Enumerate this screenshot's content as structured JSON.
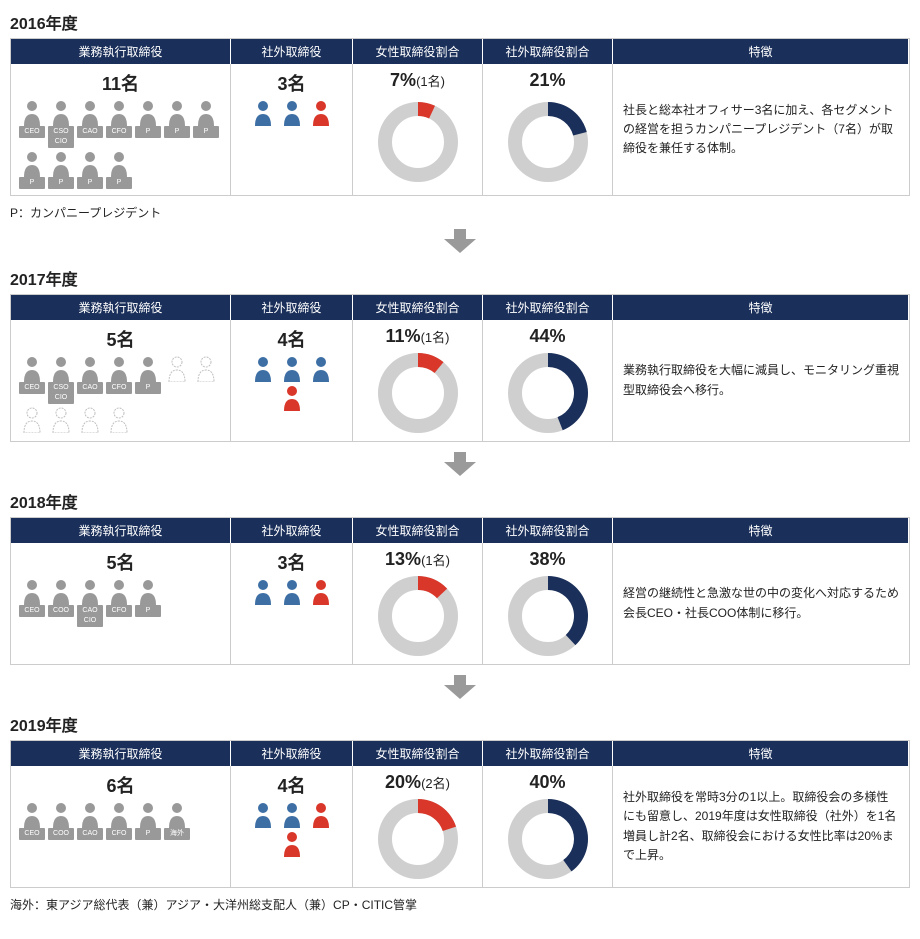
{
  "colors": {
    "header_bg": "#1a2f5a",
    "navy": "#1a2f5a",
    "red": "#d9372a",
    "blue": "#3d6fa5",
    "grey": "#999999",
    "lightgrey": "#cfcfcf",
    "donut_bg": "#cfcfcf",
    "outline": "#bfbfbf",
    "arrow": "#9a9a9a"
  },
  "headers": {
    "exec": "業務執行取締役",
    "outside": "社外取締役",
    "female": "女性取締役割合",
    "outside_ratio": "社外取締役割合",
    "feature": "特徴"
  },
  "footnotes": {
    "p": "P：カンパニープレジデント",
    "kaigai": "海外：東アジア総代表（兼）アジア・大洋州総支配人（兼）CP・CITIC管掌"
  },
  "years": [
    {
      "year": "2016年度",
      "exec_count": "11名",
      "exec_people": [
        {
          "label": "CEO",
          "color": "grey"
        },
        {
          "label": "CSO CIO",
          "color": "grey"
        },
        {
          "label": "CAO",
          "color": "grey"
        },
        {
          "label": "CFO",
          "color": "grey"
        },
        {
          "label": "P",
          "color": "grey"
        },
        {
          "label": "P",
          "color": "grey"
        },
        {
          "label": "P",
          "color": "grey"
        },
        {
          "label": "P",
          "color": "grey"
        },
        {
          "label": "P",
          "color": "grey"
        },
        {
          "label": "P",
          "color": "grey"
        },
        {
          "label": "P",
          "color": "grey"
        }
      ],
      "outside_count": "3名",
      "outside_people": [
        {
          "color": "blue"
        },
        {
          "color": "blue"
        },
        {
          "color": "red"
        }
      ],
      "female_pct_label": "7%(1名)",
      "female_pct": 7,
      "outside_pct_label": "21%",
      "outside_pct": 21,
      "feature": "社長と総本社オフィサー3名に加え、各セグメントの経営を担うカンパニープレジデント（7名）が取締役を兼任する体制。",
      "footnote_after": "p"
    },
    {
      "year": "2017年度",
      "exec_count": "5名",
      "exec_people": [
        {
          "label": "CEO",
          "color": "grey"
        },
        {
          "label": "CSO CIO",
          "color": "grey"
        },
        {
          "label": "CAO",
          "color": "grey"
        },
        {
          "label": "CFO",
          "color": "grey"
        },
        {
          "label": "P",
          "color": "grey"
        },
        {
          "label": "",
          "color": "outline"
        },
        {
          "label": "",
          "color": "outline"
        },
        {
          "label": "",
          "color": "outline"
        },
        {
          "label": "",
          "color": "outline"
        },
        {
          "label": "",
          "color": "outline"
        },
        {
          "label": "",
          "color": "outline"
        }
      ],
      "outside_count": "4名",
      "outside_people": [
        {
          "color": "blue"
        },
        {
          "color": "blue"
        },
        {
          "color": "blue"
        },
        {
          "color": "red"
        }
      ],
      "female_pct_label": "11%(1名)",
      "female_pct": 11,
      "outside_pct_label": "44%",
      "outside_pct": 44,
      "feature": "業務執行取締役を大幅に減員し、モニタリング重視型取締役会へ移行。"
    },
    {
      "year": "2018年度",
      "exec_count": "5名",
      "exec_people": [
        {
          "label": "CEO",
          "color": "grey"
        },
        {
          "label": "COO",
          "color": "grey"
        },
        {
          "label": "CAO CIO",
          "color": "grey"
        },
        {
          "label": "CFO",
          "color": "grey"
        },
        {
          "label": "P",
          "color": "grey"
        }
      ],
      "outside_count": "3名",
      "outside_people": [
        {
          "color": "blue"
        },
        {
          "color": "blue"
        },
        {
          "color": "red"
        }
      ],
      "female_pct_label": "13%(1名)",
      "female_pct": 13,
      "outside_pct_label": "38%",
      "outside_pct": 38,
      "feature": "経営の継続性と急激な世の中の変化へ対応するため会長CEO・社長COO体制に移行。"
    },
    {
      "year": "2019年度",
      "exec_count": "6名",
      "exec_people": [
        {
          "label": "CEO",
          "color": "grey"
        },
        {
          "label": "COO",
          "color": "grey"
        },
        {
          "label": "CAO",
          "color": "grey"
        },
        {
          "label": "CFO",
          "color": "grey"
        },
        {
          "label": "P",
          "color": "grey"
        },
        {
          "label": "海外",
          "color": "grey"
        }
      ],
      "outside_count": "4名",
      "outside_people": [
        {
          "color": "blue"
        },
        {
          "color": "blue"
        },
        {
          "color": "red"
        },
        {
          "color": "red"
        }
      ],
      "female_pct_label": "20%(2名)",
      "female_pct": 20,
      "outside_pct_label": "40%",
      "outside_pct": 40,
      "feature": "社外取締役を常時3分の1以上。取締役会の多様性にも留意し、2019年度は女性取締役（社外）を1名増員し計2名、取締役会における女性比率は20%まで上昇。",
      "footnote_after": "kaigai"
    }
  ],
  "donut": {
    "r_outer": 40,
    "r_inner": 26
  }
}
